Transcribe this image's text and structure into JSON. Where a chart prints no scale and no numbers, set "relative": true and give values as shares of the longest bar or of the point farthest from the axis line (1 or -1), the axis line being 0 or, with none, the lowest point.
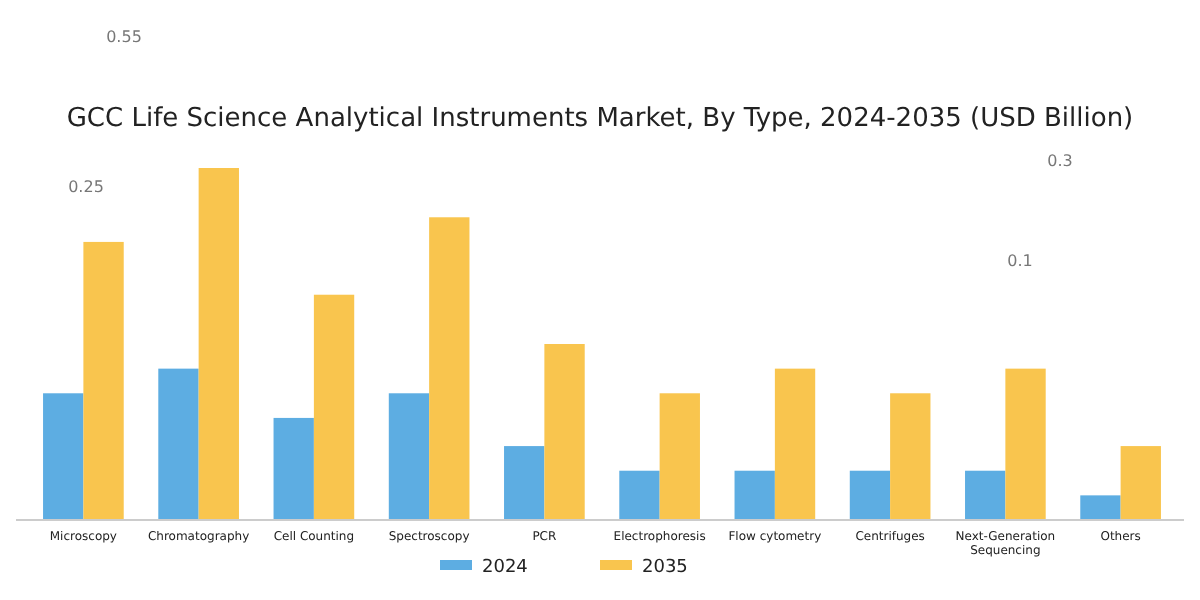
{
  "chart_data": {
    "type": "bar",
    "title": "GCC Life Science Analytical Instruments Market, By Type, 2024-2035 (USD Billion)",
    "relative": true,
    "legend": "bottom",
    "categories": [
      "Microscopy",
      "Chromatography",
      "Cell Counting",
      "Spectroscopy",
      "PCR",
      "Electrophoresis",
      "Flow cytometry",
      "Centrifuges",
      "Next-Generation Sequencing",
      "Others"
    ],
    "series": [
      {
        "name": "2024",
        "color": "#5dade2",
        "values": [
          0.36,
          0.43,
          0.29,
          0.36,
          0.21,
          0.14,
          0.14,
          0.14,
          0.14,
          0.07
        ]
      },
      {
        "name": "2035",
        "color": "#f9c54e",
        "values": [
          0.79,
          1,
          0.64,
          0.86,
          0.5,
          0.36,
          0.43,
          0.36,
          0.43,
          0.21
        ]
      }
    ],
    "annotations": [
      "0.55",
      "0.25",
      "0.3",
      "0.1"
    ]
  }
}
